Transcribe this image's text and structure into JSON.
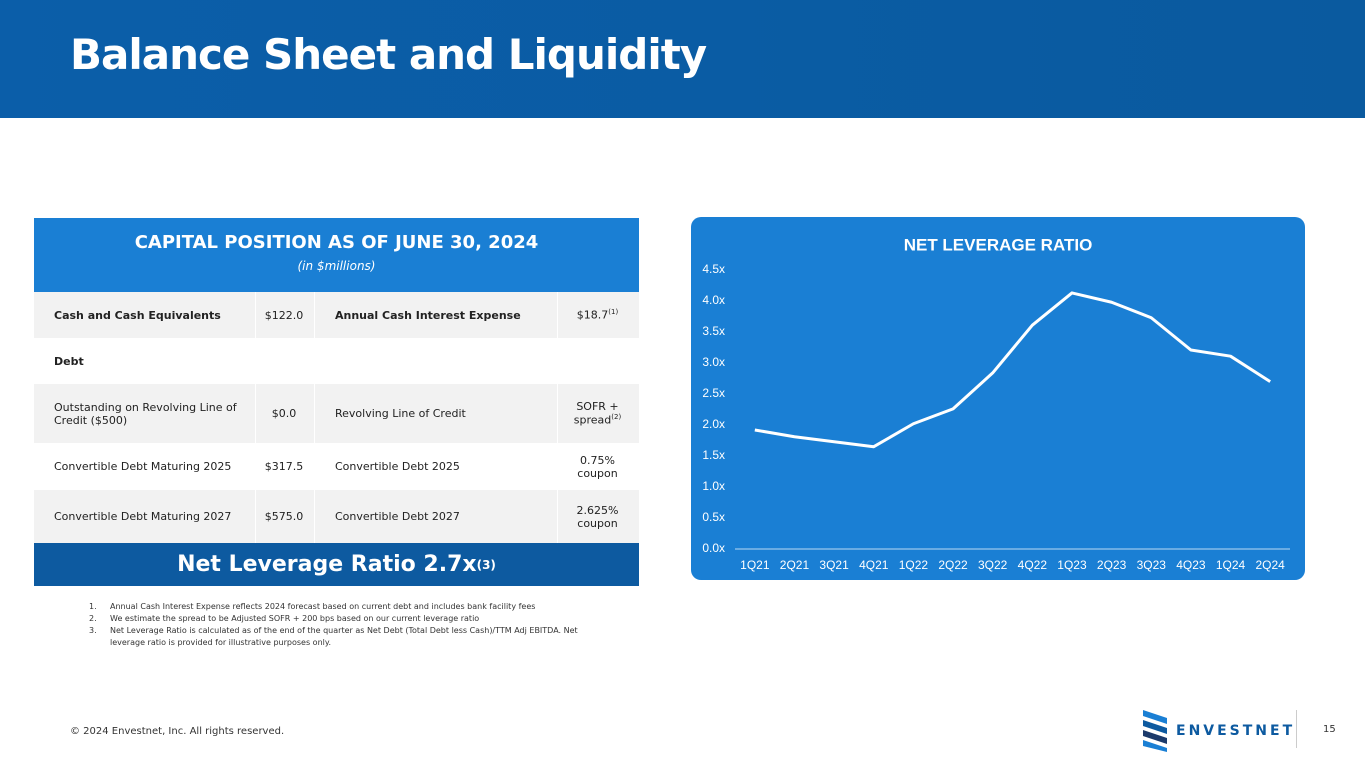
{
  "header": {
    "title": "Balance Sheet and Liquidity"
  },
  "table": {
    "title": "CAPITAL POSITION AS OF JUNE 30, 2024",
    "subtitle": "(in $millions)",
    "rows": [
      {
        "cells": [
          "Cash and Cash Equivalents",
          "$122.0",
          "Annual Cash Interest Expense",
          "$18.7"
        ],
        "note": "(1)"
      },
      {
        "cells": [
          "Debt"
        ]
      },
      {
        "cells": [
          "Outstanding on Revolving Line of Credit ($500)",
          "$0.0",
          "Revolving Line of Credit",
          "SOFR + spread"
        ],
        "note": "(2)"
      },
      {
        "cells": [
          "Convertible Debt Maturing 2025",
          "$317.5",
          "Convertible Debt 2025",
          "0.75% coupon"
        ]
      },
      {
        "cells": [
          "Convertible Debt Maturing 2027",
          "$575.0",
          "Convertible Debt 2027",
          "2.625% coupon"
        ]
      }
    ],
    "summary": {
      "label": "Net Leverage Ratio 2.7x",
      "note": "(3)"
    }
  },
  "chart_data": {
    "type": "line",
    "title": "NET LEVERAGE RATIO",
    "categories": [
      "1Q21",
      "2Q21",
      "3Q21",
      "4Q21",
      "1Q22",
      "2Q22",
      "3Q22",
      "4Q22",
      "1Q23",
      "2Q23",
      "3Q23",
      "4Q23",
      "1Q24",
      "2Q24"
    ],
    "series": [
      {
        "name": "Net Leverage Ratio",
        "color": "#ffffff",
        "values": [
          1.92,
          1.81,
          1.73,
          1.65,
          2.02,
          2.26,
          2.84,
          3.61,
          4.13,
          3.98,
          3.73,
          3.21,
          3.11,
          2.7
        ]
      }
    ],
    "ylim": [
      0,
      4.5
    ],
    "yticks": [
      {
        "value": 0,
        "label": "0.0x"
      },
      {
        "value": 0.5,
        "label": "0.5x"
      },
      {
        "value": 1,
        "label": "1.0x"
      },
      {
        "value": 1.5,
        "label": "1.5x"
      },
      {
        "value": 2,
        "label": "2.0x"
      },
      {
        "value": 2.5,
        "label": "2.5x"
      },
      {
        "value": 3,
        "label": "3.0x"
      },
      {
        "value": 3.5,
        "label": "3.5x"
      },
      {
        "value": 4,
        "label": "4.0x"
      },
      {
        "value": 4.5,
        "label": "4.5x"
      }
    ],
    "grid": false
  },
  "footnotes": [
    {
      "number": "1.",
      "text": "Annual Cash Interest Expense reflects 2024 forecast based on current debt and includes bank facility fees"
    },
    {
      "number": "2.",
      "text": "We estimate the spread to be Adjusted SOFR + 200 bps based on our current leverage ratio"
    },
    {
      "number": "3.",
      "text": "Net Leverage Ratio is calculated as of the end of the quarter as Net Debt (Total Debt less Cash)/TTM Adj EBITDA. Net leverage ratio is provided for illustrative purposes only."
    }
  ],
  "footer": {
    "copyright": "© 2024 Envestnet, Inc. All rights reserved.",
    "logo": "ENVESTNET",
    "page": "15"
  }
}
